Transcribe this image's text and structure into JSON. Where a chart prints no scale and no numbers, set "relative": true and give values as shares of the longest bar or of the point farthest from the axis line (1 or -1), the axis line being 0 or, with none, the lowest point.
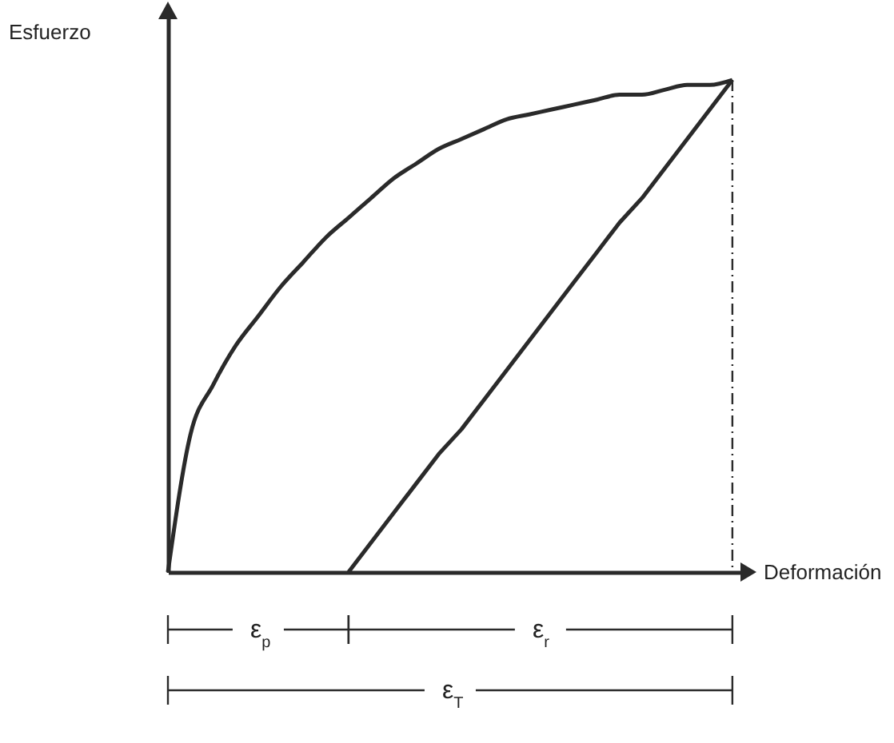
{
  "chart_data": {
    "type": "line",
    "relative": true,
    "xlabel": "Deformación",
    "ylabel": "Esfuerzo",
    "marker": "none",
    "categories": [
      null,
      null,
      null,
      null,
      null,
      null,
      null,
      null,
      null,
      null,
      null,
      null,
      null,
      null,
      null,
      null,
      null,
      null,
      null,
      null,
      null,
      null,
      null,
      null,
      null,
      null
    ],
    "series": [
      {
        "color": "#2a2a2a",
        "values": [
          0,
          0.28,
          0.38,
          0.46,
          0.52,
          0.58,
          0.63,
          0.68,
          0.72,
          0.76,
          0.8,
          0.83,
          0.86,
          0.88,
          0.9,
          0.92,
          0.93,
          0.94,
          0.95,
          0.96,
          0.97,
          0.97,
          0.98,
          0.99,
          0.99,
          1
        ]
      },
      {
        "color": "#2a2a2a",
        "values": [
          null,
          null,
          null,
          null,
          null,
          null,
          null,
          null,
          0,
          0.06,
          0.12,
          0.18,
          0.24,
          0.29,
          0.35,
          0.41,
          0.47,
          0.53,
          0.59,
          0.65,
          0.71,
          0.76,
          0.82,
          0.88,
          0.94,
          1
        ]
      }
    ],
    "annotations": [
      "ε$_{p}$",
      "ε$_{r}$",
      "ε$_{T}$"
    ]
  }
}
